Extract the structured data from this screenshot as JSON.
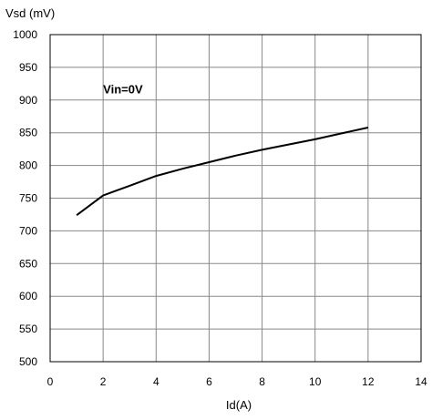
{
  "chart_data": {
    "type": "line",
    "title": "",
    "xlabel": "Id(A)",
    "ylabel": "Vsd (mV)",
    "xlim": [
      0,
      14
    ],
    "ylim": [
      500,
      1000
    ],
    "xticks": [
      0,
      2,
      4,
      6,
      8,
      10,
      12,
      14
    ],
    "yticks": [
      500,
      550,
      600,
      650,
      700,
      750,
      800,
      850,
      900,
      950,
      1000
    ],
    "grid": true,
    "legend": "none",
    "annotations": [
      {
        "text": "Vin=0V",
        "x": 2,
        "y": 910
      }
    ],
    "series": [
      {
        "color": "#000000",
        "x": [
          1,
          2,
          3,
          4,
          5,
          6,
          7,
          8,
          9,
          10,
          11,
          12
        ],
        "y": [
          724,
          754,
          769,
          784,
          795,
          805,
          815,
          824,
          832,
          840,
          849,
          858
        ]
      }
    ]
  }
}
